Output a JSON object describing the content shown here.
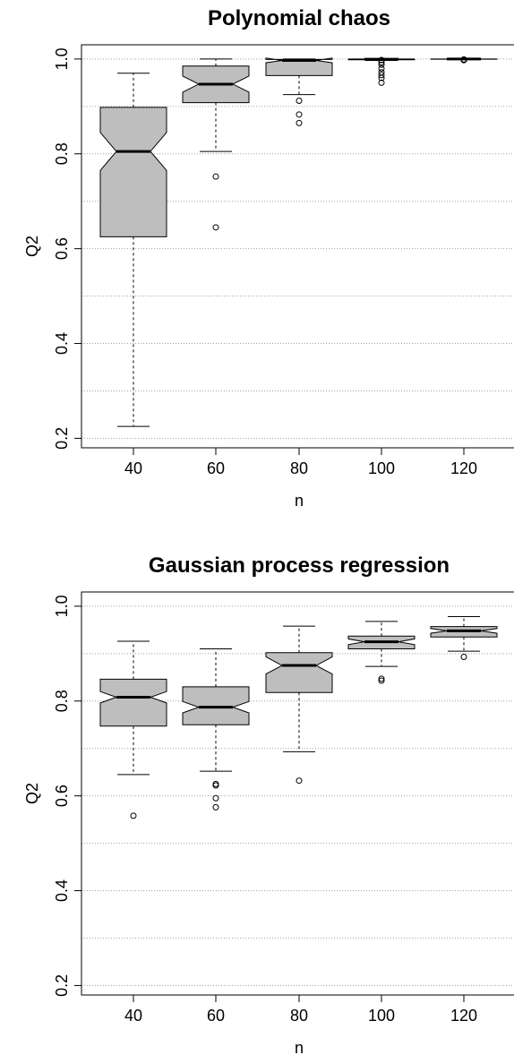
{
  "chart_data": [
    {
      "type": "box",
      "title": "Polynomial chaos",
      "xlabel": "n",
      "ylabel": "Q2",
      "ylim": [
        0.18,
        1.03
      ],
      "yticks": [
        "0.2",
        "0.4",
        "0.6",
        "0.8",
        "1.0"
      ],
      "ytick_values": [
        0.2,
        0.4,
        0.6,
        0.8,
        1.0
      ],
      "gridlines": [
        0.2,
        0.3,
        0.4,
        0.5,
        0.6,
        0.7,
        0.8,
        0.9,
        1.0
      ],
      "grid": "dotted horizontal",
      "box_fill": "#bebebe",
      "categories": [
        "40",
        "60",
        "80",
        "100",
        "120"
      ],
      "boxes": [
        {
          "x": "40",
          "whisker_low": 0.225,
          "q1": 0.625,
          "median": 0.805,
          "q3": 0.898,
          "whisker_high": 0.97,
          "notch_low": 0.765,
          "notch_high": 0.845,
          "outliers": []
        },
        {
          "x": "60",
          "whisker_low": 0.805,
          "q1": 0.908,
          "median": 0.947,
          "q3": 0.985,
          "whisker_high": 1.0,
          "notch_low": 0.93,
          "notch_high": 0.964,
          "outliers": [
            0.752,
            0.645
          ]
        },
        {
          "x": "80",
          "whisker_low": 0.925,
          "q1": 0.965,
          "median": 0.997,
          "q3": 0.999,
          "whisker_high": 1.0,
          "notch_low": 0.992,
          "notch_high": 1.002,
          "outliers": [
            0.912,
            0.883,
            0.865
          ]
        },
        {
          "x": "100",
          "whisker_low": 0.997,
          "q1": 0.9985,
          "median": 0.9995,
          "q3": 1.0,
          "whisker_high": 1.0,
          "notch_low": 0.9988,
          "notch_high": 1.0,
          "outliers": [
            0.998,
            0.993,
            0.988,
            0.98,
            0.972,
            0.966,
            0.96,
            0.95
          ]
        },
        {
          "x": "120",
          "whisker_low": 0.999,
          "q1": 0.9995,
          "median": 1.0,
          "q3": 1.0,
          "whisker_high": 1.0,
          "notch_low": 0.9997,
          "notch_high": 1.0,
          "outliers": [
            0.999,
            0.998,
            0.9975
          ]
        }
      ]
    },
    {
      "type": "box",
      "title": "Gaussian process regression",
      "xlabel": "n",
      "ylabel": "Q2",
      "ylim": [
        0.18,
        1.03
      ],
      "yticks": [
        "0.2",
        "0.4",
        "0.6",
        "0.8",
        "1.0"
      ],
      "ytick_values": [
        0.2,
        0.4,
        0.6,
        0.8,
        1.0
      ],
      "gridlines": [
        0.2,
        0.3,
        0.4,
        0.5,
        0.6,
        0.7,
        0.8,
        0.9,
        1.0
      ],
      "grid": "dotted horizontal",
      "box_fill": "#bebebe",
      "categories": [
        "40",
        "60",
        "80",
        "100",
        "120"
      ],
      "boxes": [
        {
          "x": "40",
          "whisker_low": 0.645,
          "q1": 0.747,
          "median": 0.808,
          "q3": 0.846,
          "whisker_high": 0.926,
          "notch_low": 0.796,
          "notch_high": 0.82,
          "outliers": [
            0.558
          ]
        },
        {
          "x": "60",
          "whisker_low": 0.652,
          "q1": 0.75,
          "median": 0.787,
          "q3": 0.83,
          "whisker_high": 0.91,
          "notch_low": 0.775,
          "notch_high": 0.799,
          "outliers": [
            0.625,
            0.622,
            0.595,
            0.576
          ]
        },
        {
          "x": "80",
          "whisker_low": 0.693,
          "q1": 0.818,
          "median": 0.875,
          "q3": 0.902,
          "whisker_high": 0.958,
          "notch_low": 0.857,
          "notch_high": 0.893,
          "outliers": [
            0.632
          ]
        },
        {
          "x": "100",
          "whisker_low": 0.873,
          "q1": 0.91,
          "median": 0.925,
          "q3": 0.937,
          "whisker_high": 0.968,
          "notch_low": 0.919,
          "notch_high": 0.931,
          "outliers": [
            0.847,
            0.843
          ]
        },
        {
          "x": "120",
          "whisker_low": 0.905,
          "q1": 0.935,
          "median": 0.948,
          "q3": 0.957,
          "whisker_high": 0.978,
          "notch_low": 0.943,
          "notch_high": 0.953,
          "outliers": [
            0.893
          ]
        }
      ]
    }
  ]
}
